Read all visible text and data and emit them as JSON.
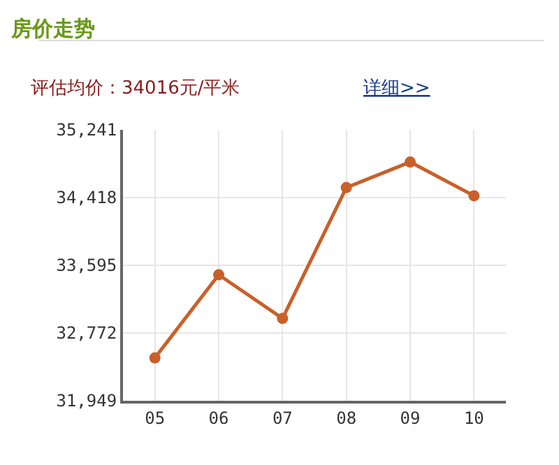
{
  "chart_data": {
    "type": "line",
    "title": "房价走势",
    "subtitle": "评估均价：34016元/平米",
    "annotations": [
      "详细>>"
    ],
    "categories": [
      "05",
      "06",
      "07",
      "08",
      "09",
      "10"
    ],
    "series": [
      {
        "color": "#c8602a",
        "values": [
          32470,
          33480,
          32950,
          34540,
          34850,
          34440
        ]
      }
    ],
    "ylim": [
      31949,
      35241
    ],
    "yticks": [
      {
        "value": 31949,
        "label": "31,949"
      },
      {
        "value": 32772,
        "label": "32,772"
      },
      {
        "value": 33595,
        "label": "33,595"
      },
      {
        "value": 34418,
        "label": "34,418"
      },
      {
        "value": 35241,
        "label": "35,241"
      }
    ],
    "grid": true,
    "marker": "circle",
    "line_style": "solid",
    "legend": false
  }
}
